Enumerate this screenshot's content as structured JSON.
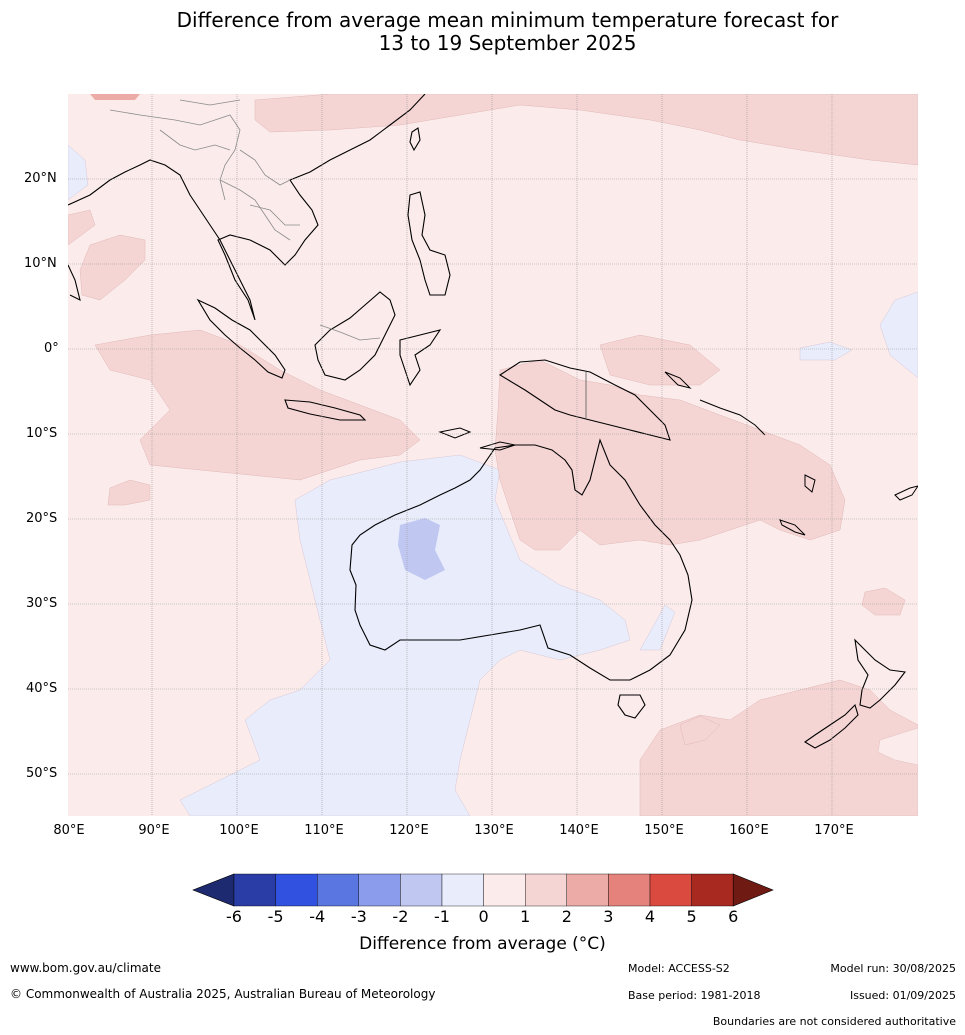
{
  "title": {
    "line1": "Difference from average mean minimum temperature forecast for",
    "line2": "13 to 19 September 2025"
  },
  "map": {
    "lat_labels": [
      "20°N",
      "10°N",
      "0°",
      "10°S",
      "20°S",
      "30°S",
      "40°S",
      "50°S"
    ],
    "lon_labels": [
      "80°E",
      "90°E",
      "100°E",
      "110°E",
      "120°E",
      "130°E",
      "140°E",
      "150°E",
      "160°E",
      "170°E"
    ]
  },
  "colorbar": {
    "ticks": [
      "-6",
      "-5",
      "-4",
      "-3",
      "-2",
      "-1",
      "0",
      "1",
      "2",
      "3",
      "4",
      "5",
      "6"
    ],
    "colors": [
      "#2a3da6",
      "#3152e0",
      "#5a76e0",
      "#8a9ceb",
      "#c0c8f2",
      "#e8ecfb",
      "#fbeceb",
      "#f5d5d4",
      "#ecaba7",
      "#e6827c",
      "#da4a3e",
      "#a8291f"
    ],
    "extend_low_color": "#1e2a70",
    "extend_high_color": "#701a14",
    "label": "Difference from average (°C)"
  },
  "footer": {
    "website": "www.bom.gov.au/climate",
    "copyright": "© Commonwealth of Australia 2025, Australian Bureau of Meteorology",
    "model": "Model: ACCESS-S2",
    "base_period": "Base period: 1981-2018",
    "model_run": "Model run: 30/08/2025",
    "issued": "Issued: 01/09/2025",
    "disclaimer": "Boundaries are not considered authoritative"
  }
}
